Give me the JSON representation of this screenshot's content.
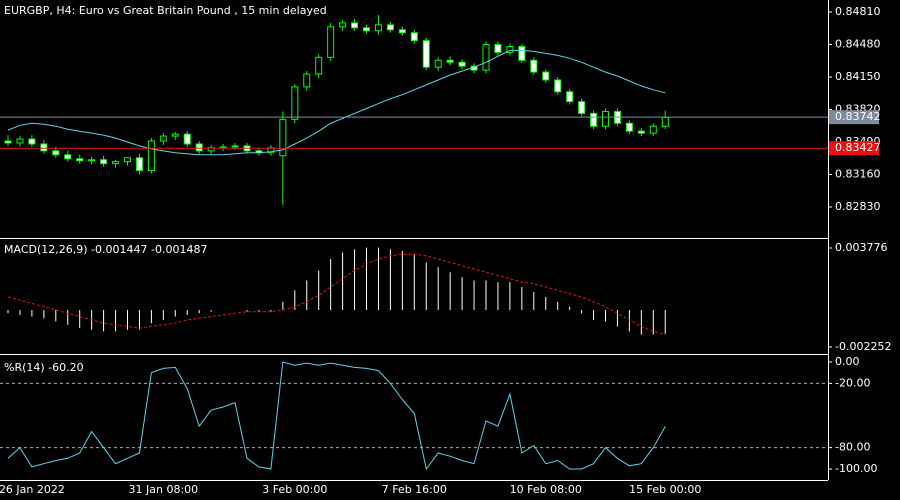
{
  "chart_data": [
    {
      "type": "candlestick",
      "title": "EURGBP, H4:  Euro vs Great Britain Pound , 15 min delayed",
      "categories": [
        null,
        null,
        "26 Jan 2022",
        null,
        null,
        null,
        null,
        null,
        null,
        null,
        null,
        null,
        null,
        "31 Jan 08:00",
        null,
        null,
        null,
        null,
        null,
        null,
        null,
        null,
        null,
        null,
        "3 Feb 00:00",
        null,
        null,
        null,
        null,
        null,
        null,
        null,
        null,
        null,
        "7 Feb 16:00",
        null,
        null,
        null,
        null,
        null,
        null,
        null,
        null,
        null,
        null,
        "10 Feb 08:00",
        null,
        null,
        null,
        null,
        null,
        null,
        null,
        null,
        null,
        "15 Feb 00:00"
      ],
      "open": [
        0.835,
        0.8348,
        0.8352,
        0.8347,
        0.834,
        0.8336,
        0.8332,
        0.833,
        0.8331,
        0.8327,
        0.8329,
        0.8333,
        0.832,
        0.835,
        0.8355,
        0.8357,
        0.8347,
        0.834,
        0.8343,
        0.8344,
        0.8345,
        0.834,
        0.8338,
        0.8335,
        0.8372,
        0.8405,
        0.8418,
        0.8435,
        0.8466,
        0.847,
        0.8465,
        0.8462,
        0.8468,
        0.8463,
        0.846,
        0.8452,
        0.8425,
        0.8432,
        0.843,
        0.8426,
        0.8422,
        0.8448,
        0.844,
        0.8446,
        0.8432,
        0.842,
        0.8412,
        0.84,
        0.839,
        0.8378,
        0.8365,
        0.838,
        0.8368,
        0.836,
        0.8358,
        0.8365
      ],
      "high": [
        0.8356,
        0.8355,
        0.8356,
        0.8351,
        0.8344,
        0.834,
        0.8336,
        0.8334,
        0.8335,
        0.8331,
        0.8333,
        0.8337,
        0.8353,
        0.8358,
        0.8359,
        0.836,
        0.835,
        0.8346,
        0.8347,
        0.8348,
        0.8348,
        0.8343,
        0.8346,
        0.838,
        0.8408,
        0.8421,
        0.8438,
        0.847,
        0.8473,
        0.8474,
        0.8468,
        0.8478,
        0.8471,
        0.8466,
        0.8463,
        0.8455,
        0.8435,
        0.8436,
        0.8433,
        0.8429,
        0.8451,
        0.8451,
        0.8449,
        0.8448,
        0.8435,
        0.8423,
        0.8415,
        0.8403,
        0.8393,
        0.8381,
        0.8383,
        0.8383,
        0.8371,
        0.8363,
        0.8368,
        0.8381
      ],
      "low": [
        0.8345,
        0.8344,
        0.8344,
        0.8337,
        0.8333,
        0.8329,
        0.8327,
        0.8326,
        0.8324,
        0.8323,
        0.8325,
        0.8316,
        0.8317,
        0.8346,
        0.8351,
        0.8344,
        0.8337,
        0.8337,
        0.834,
        0.8341,
        0.8337,
        0.8335,
        0.8335,
        0.8285,
        0.8368,
        0.8401,
        0.8414,
        0.8431,
        0.8462,
        0.8462,
        0.8459,
        0.8458,
        0.846,
        0.8457,
        0.8449,
        0.8422,
        0.8421,
        0.8427,
        0.8423,
        0.8419,
        0.8419,
        0.8437,
        0.8437,
        0.8429,
        0.8417,
        0.8409,
        0.8397,
        0.8387,
        0.8375,
        0.8362,
        0.8362,
        0.8365,
        0.8357,
        0.8355,
        0.8355,
        0.8362
      ],
      "close": [
        0.8348,
        0.8352,
        0.8347,
        0.834,
        0.8336,
        0.8332,
        0.833,
        0.8331,
        0.8327,
        0.8329,
        0.8333,
        0.832,
        0.835,
        0.8355,
        0.8357,
        0.8347,
        0.834,
        0.8343,
        0.8344,
        0.8345,
        0.834,
        0.8338,
        0.8343,
        0.8372,
        0.8405,
        0.8418,
        0.8435,
        0.8466,
        0.847,
        0.8465,
        0.8462,
        0.8468,
        0.8463,
        0.846,
        0.8452,
        0.8425,
        0.8432,
        0.843,
        0.8426,
        0.8422,
        0.8448,
        0.844,
        0.8446,
        0.8432,
        0.842,
        0.8412,
        0.84,
        0.839,
        0.8378,
        0.8365,
        0.838,
        0.8368,
        0.836,
        0.8358,
        0.8365,
        0.8374
      ],
      "moving_average": {
        "color": "#5bd5e8",
        "values": [
          0.8361,
          0.8366,
          0.8368,
          0.8367,
          0.8365,
          0.8362,
          0.836,
          0.8358,
          0.8356,
          0.8353,
          0.8349,
          0.8345,
          0.8342,
          0.834,
          0.8338,
          0.8337,
          0.8336,
          0.8336,
          0.8336,
          0.8337,
          0.8338,
          0.8338,
          0.8339,
          0.8341,
          0.8347,
          0.8353,
          0.836,
          0.8368,
          0.8373,
          0.8378,
          0.8383,
          0.8388,
          0.8393,
          0.8397,
          0.8402,
          0.8407,
          0.8412,
          0.8417,
          0.8421,
          0.8425,
          0.843,
          0.8436,
          0.8442,
          0.8442,
          0.8441,
          0.8439,
          0.8437,
          0.8434,
          0.843,
          0.8425,
          0.842,
          0.8416,
          0.8411,
          0.8406,
          0.8402,
          0.8399
        ]
      },
      "up_color": "#00ff00",
      "down_color": "#ffffff",
      "price_lines": [
        {
          "value": 0.83742,
          "color": "#7d8c9c"
        },
        {
          "value": 0.83427,
          "color": "#e8110f"
        }
      ],
      "ylim": [
        0.82525,
        0.84912
      ],
      "yticks": [
        {
          "value": 0.8481,
          "label": "0.84810"
        },
        {
          "value": 0.8448,
          "label": "0.84480"
        },
        {
          "value": 0.8415,
          "label": "0.84150"
        },
        {
          "value": 0.8382,
          "label": "0.83820"
        },
        {
          "value": 0.8349,
          "label": "0.83490"
        },
        {
          "value": 0.8316,
          "label": "0.83160"
        },
        {
          "value": 0.8283,
          "label": "0.82830"
        }
      ]
    },
    {
      "type": "macd",
      "title": "MACD(12,26,9) -0.001447 -0.001487",
      "histogram": {
        "color": "#ffffff",
        "values": [
          -0.0002,
          -0.0003,
          -0.0004,
          -0.0005,
          -0.0007,
          -0.0009,
          -0.0011,
          -0.0012,
          -0.0013,
          -0.0013,
          -0.0012,
          -0.0012,
          -0.0008,
          -0.0006,
          -0.0004,
          -0.0003,
          -0.0002,
          -0.0001,
          0.0,
          0.0,
          -0.0001,
          -0.0001,
          -0.0001,
          0.0005,
          0.0012,
          0.0018,
          0.0024,
          0.0031,
          0.0035,
          0.0037,
          0.0038,
          0.0038,
          0.0037,
          0.0036,
          0.0034,
          0.0029,
          0.0026,
          0.0023,
          0.002,
          0.0018,
          0.0018,
          0.0017,
          0.0017,
          0.0014,
          0.0011,
          0.0008,
          0.0005,
          0.0002,
          -0.0002,
          -0.0006,
          -0.0007,
          -0.001,
          -0.0013,
          -0.0015,
          -0.0015,
          -0.001447
        ]
      },
      "signal": {
        "color": "#e8110f",
        "values": [
          0.0008,
          0.0006,
          0.0004,
          0.0002,
          0.0,
          -0.0002,
          -0.0004,
          -0.0006,
          -0.0008,
          -0.0009,
          -0.001,
          -0.0011,
          -0.001,
          -0.0009,
          -0.0008,
          -0.0006,
          -0.0005,
          -0.0004,
          -0.0003,
          -0.0002,
          -0.0001,
          -0.0001,
          -0.0001,
          0.0,
          0.0002,
          0.0005,
          0.0009,
          0.0014,
          0.0019,
          0.0024,
          0.0028,
          0.0031,
          0.0033,
          0.0034,
          0.0034,
          0.0033,
          0.0031,
          0.0029,
          0.0027,
          0.0025,
          0.0023,
          0.0021,
          0.0019,
          0.0017,
          0.0016,
          0.0014,
          0.0012,
          0.001,
          0.0008,
          0.0005,
          0.0002,
          -0.0002,
          -0.0006,
          -0.001,
          -0.0013,
          -0.001487
        ]
      },
      "ylim": [
        -0.002557,
        0.004263
      ],
      "yticks": [
        0.003776,
        -0.002252
      ]
    },
    {
      "type": "line",
      "title": "%R(14) -60.20",
      "values": [
        -90,
        -80,
        -98,
        -95,
        -92,
        -90,
        -85,
        -65,
        -80,
        -95,
        -90,
        -85,
        -10,
        -6,
        -5,
        -25,
        -60,
        -45,
        -42,
        -38,
        -90,
        -98,
        -100,
        0,
        -3,
        -1,
        -3,
        -1,
        -3,
        -5,
        -6,
        -8,
        -20,
        -35,
        -48,
        -100,
        -85,
        -88,
        -92,
        -95,
        -55,
        -60,
        -30,
        -85,
        -78,
        -95,
        -92,
        -100,
        -100,
        -95,
        -80,
        -90,
        -97,
        -95,
        -80,
        -60.2
      ],
      "color": "#5bd5e8",
      "levels": [
        -20,
        -80
      ],
      "ylim": [
        -108.4,
        4.7
      ],
      "yticks": [
        {
          "value": 0,
          "label": "0.00"
        },
        {
          "value": -20,
          "label": "-20.00"
        },
        {
          "value": -80,
          "label": "-80.00"
        },
        {
          "value": -100,
          "label": "-100.00"
        }
      ]
    }
  ]
}
